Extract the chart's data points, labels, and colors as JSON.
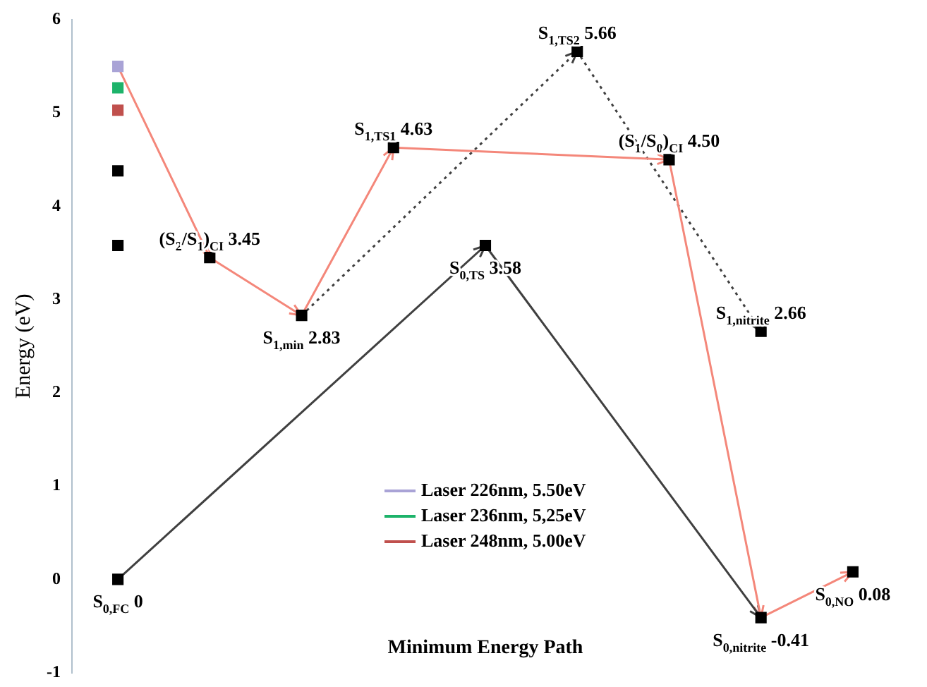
{
  "chart_data": {
    "type": "scatter",
    "xlabel": "Minimum Energy Path",
    "ylabel": "Energy (eV)",
    "categories": [
      null,
      null,
      null,
      null,
      null,
      null,
      null,
      null,
      null
    ],
    "ylim": [
      -1,
      6
    ],
    "yticks": [
      -1,
      0,
      1,
      2,
      3,
      4,
      5,
      6
    ],
    "grid": false,
    "tick_labels": "y",
    "legend": "bottom",
    "marker": "square",
    "series": [
      {
        "type": "line",
        "marker": "none",
        "color": "#f4877a",
        "values": [
          5.5,
          3.45,
          2.83,
          4.63,
          null,
          null,
          4.5,
          -0.41,
          0.08
        ]
      },
      {
        "type": "line",
        "marker": "none",
        "color": "#404040",
        "values": [
          0,
          null,
          null,
          null,
          3.58,
          null,
          null,
          -0.41,
          null
        ]
      },
      {
        "type": "line",
        "marker": "none",
        "color": "#404040",
        "line_style": "dotted",
        "values": [
          null,
          null,
          2.83,
          null,
          null,
          5.66,
          null,
          2.66,
          null
        ]
      },
      {
        "color": "#000000",
        "values": [
          0,
          3.45,
          2.83,
          4.63,
          3.58,
          5.66,
          4.5,
          2.66,
          0.08
        ],
        "value_labels": [
          "S$_{0,FC}$ 0",
          "(S$_{2}$/S$_{1}$)$_{CI}$ 3.45",
          "S$_{1,min}$ 2.83",
          "S$_{1,TS1}$ 4.63",
          "S$_{0,TS}$ 3.58",
          "S$_{1,TS2}$ 5.66",
          "(S$_{1}$/S$_{0}$)$_{CI}$ 4.50",
          "S$_{1,nitrite}$ 2.66",
          "S$_{0,NO}$ 0.08"
        ]
      },
      {
        "color": "#000000",
        "values": [
          null,
          null,
          null,
          null,
          null,
          null,
          null,
          -0.41,
          null
        ],
        "value_labels": [
          null,
          null,
          null,
          null,
          null,
          null,
          null,
          "S$_{0,nitrite}$ -0.41",
          null
        ]
      },
      {
        "color": "#000000",
        "values": [
          4.38,
          null,
          null,
          null,
          null,
          null,
          null,
          null,
          null
        ]
      },
      {
        "color": "#000000",
        "values": [
          3.58,
          null,
          null,
          null,
          null,
          null,
          null,
          null,
          null
        ]
      },
      {
        "name": "Laser 226nm, 5.50eV",
        "color": "#a9a3d6",
        "values": [
          5.5,
          null,
          null,
          null,
          null,
          null,
          null,
          null,
          null
        ]
      },
      {
        "name": "Laser 236nm, 5,25eV",
        "color": "#1db36a",
        "values": [
          5.27,
          null,
          null,
          null,
          null,
          null,
          null,
          null,
          null
        ]
      },
      {
        "name": "Laser 248nm, 5.00eV",
        "color": "#c0504d",
        "values": [
          5.03,
          null,
          null,
          null,
          null,
          null,
          null,
          null,
          null
        ]
      }
    ]
  }
}
